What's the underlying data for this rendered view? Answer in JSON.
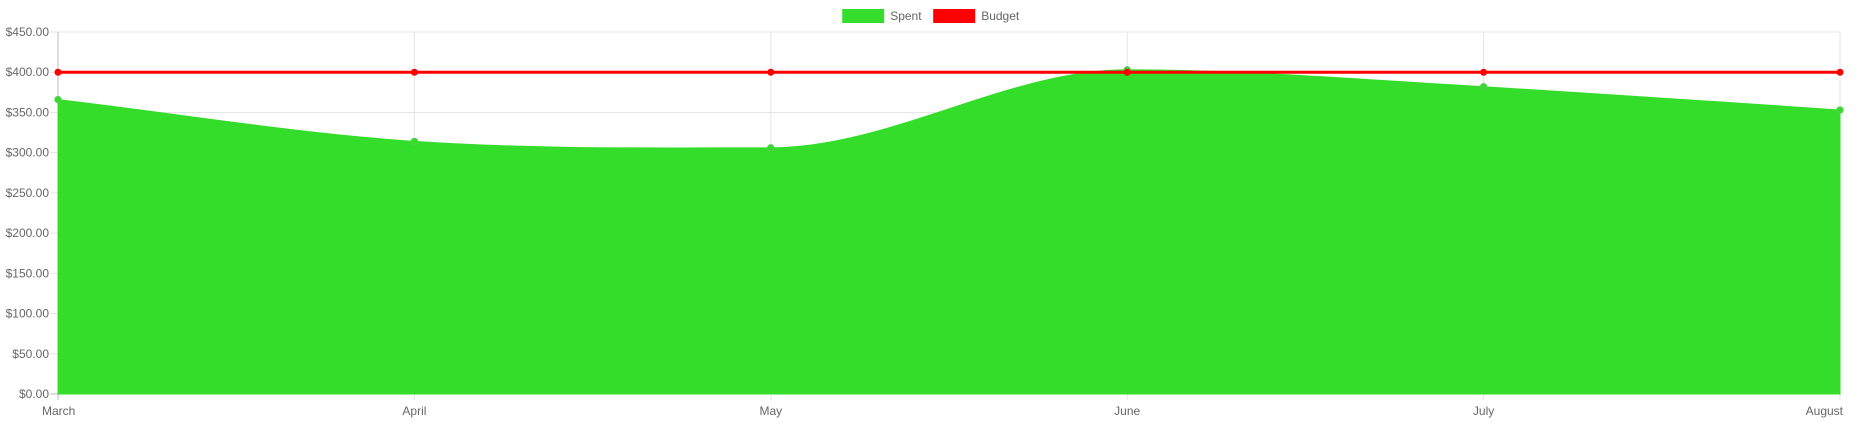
{
  "chart_data": {
    "type": "area",
    "categories": [
      "March",
      "April",
      "May",
      "June",
      "July",
      "August"
    ],
    "series": [
      {
        "name": "Spent",
        "type": "area",
        "values": [
          366,
          314,
          306,
          403,
          382,
          353
        ],
        "color": "#33dd2a"
      },
      {
        "name": "Budget",
        "type": "line",
        "values": [
          400,
          400,
          400,
          400,
          400,
          400
        ],
        "color": "#ff0000"
      }
    ],
    "yticks": [
      "$0.00",
      "$50.00",
      "$100.00",
      "$150.00",
      "$200.00",
      "$250.00",
      "$300.00",
      "$350.00",
      "$400.00",
      "$450.00"
    ],
    "ylim": [
      0,
      450
    ],
    "grid": true,
    "legend_position": "top-center"
  }
}
